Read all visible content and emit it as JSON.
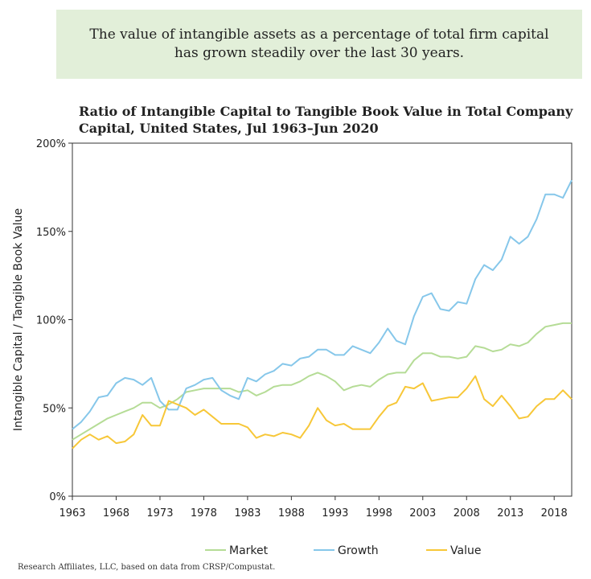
{
  "banner": {
    "line1": "The value of intangible assets as a percentage of total firm capital",
    "line2": "has grown steadily over the last 30 years."
  },
  "footer": "Research Affiliates, LLC, based on data from CRSP/Compustat.",
  "colors": {
    "Market": "#b5dc96",
    "Growth": "#86c7ea",
    "Value": "#f7c738"
  },
  "chart_data": {
    "type": "line",
    "title": "Ratio of Intangible Capital to Tangible Book Value in Total Company Capital, United States, Jul 1963–Jun 2020",
    "title_lines": [
      "Ratio of Intangible Capital to Tangible Book Value in Total Company",
      "Capital, United States, Jul 1963–Jun 2020"
    ],
    "xlabel": "",
    "ylabel": "Intangible Capital / Tangible Book Value",
    "xlim": [
      1963,
      2020
    ],
    "ylim": [
      0,
      200
    ],
    "x_ticks": [
      "1963",
      "1968",
      "1973",
      "1978",
      "1983",
      "1988",
      "1993",
      "1998",
      "2003",
      "2008",
      "2013",
      "2018"
    ],
    "y_ticks": [
      "0%",
      "50%",
      "100%",
      "150%",
      "200%"
    ],
    "legend_position": "bottom",
    "grid": false,
    "x": [
      1963,
      1964,
      1965,
      1966,
      1967,
      1968,
      1969,
      1970,
      1971,
      1972,
      1973,
      1974,
      1975,
      1976,
      1977,
      1978,
      1979,
      1980,
      1981,
      1982,
      1983,
      1984,
      1985,
      1986,
      1987,
      1988,
      1989,
      1990,
      1991,
      1992,
      1993,
      1994,
      1995,
      1996,
      1997,
      1998,
      1999,
      2000,
      2001,
      2002,
      2003,
      2004,
      2005,
      2006,
      2007,
      2008,
      2009,
      2010,
      2011,
      2012,
      2013,
      2014,
      2015,
      2016,
      2017,
      2018,
      2019,
      2020
    ],
    "series": [
      {
        "name": "Market",
        "values": [
          32,
          35,
          38,
          41,
          44,
          46,
          48,
          50,
          53,
          53,
          50,
          52,
          55,
          59,
          60,
          61,
          61,
          61,
          61,
          59,
          60,
          57,
          59,
          62,
          63,
          63,
          65,
          68,
          70,
          68,
          65,
          60,
          62,
          63,
          62,
          66,
          69,
          70,
          70,
          77,
          81,
          81,
          79,
          79,
          78,
          79,
          85,
          84,
          82,
          83,
          86,
          85,
          87,
          92,
          96,
          97,
          98,
          98
        ]
      },
      {
        "name": "Growth",
        "values": [
          38,
          42,
          48,
          56,
          57,
          64,
          67,
          66,
          63,
          67,
          54,
          49,
          49,
          61,
          63,
          66,
          67,
          60,
          57,
          55,
          67,
          65,
          69,
          71,
          75,
          74,
          78,
          79,
          83,
          83,
          80,
          80,
          85,
          83,
          81,
          87,
          95,
          88,
          86,
          102,
          113,
          115,
          106,
          105,
          110,
          109,
          123,
          131,
          128,
          134,
          147,
          143,
          147,
          157,
          171,
          171,
          169,
          179
        ]
      },
      {
        "name": "Value",
        "values": [
          27,
          32,
          35,
          32,
          34,
          30,
          31,
          35,
          46,
          40,
          40,
          54,
          52,
          50,
          46,
          49,
          45,
          41,
          41,
          41,
          39,
          33,
          35,
          34,
          36,
          35,
          33,
          40,
          50,
          43,
          40,
          41,
          38,
          38,
          38,
          45,
          51,
          53,
          62,
          61,
          64,
          54,
          55,
          56,
          56,
          61,
          68,
          55,
          51,
          57,
          51,
          44,
          45,
          51,
          55,
          55,
          60,
          55
        ]
      }
    ]
  }
}
